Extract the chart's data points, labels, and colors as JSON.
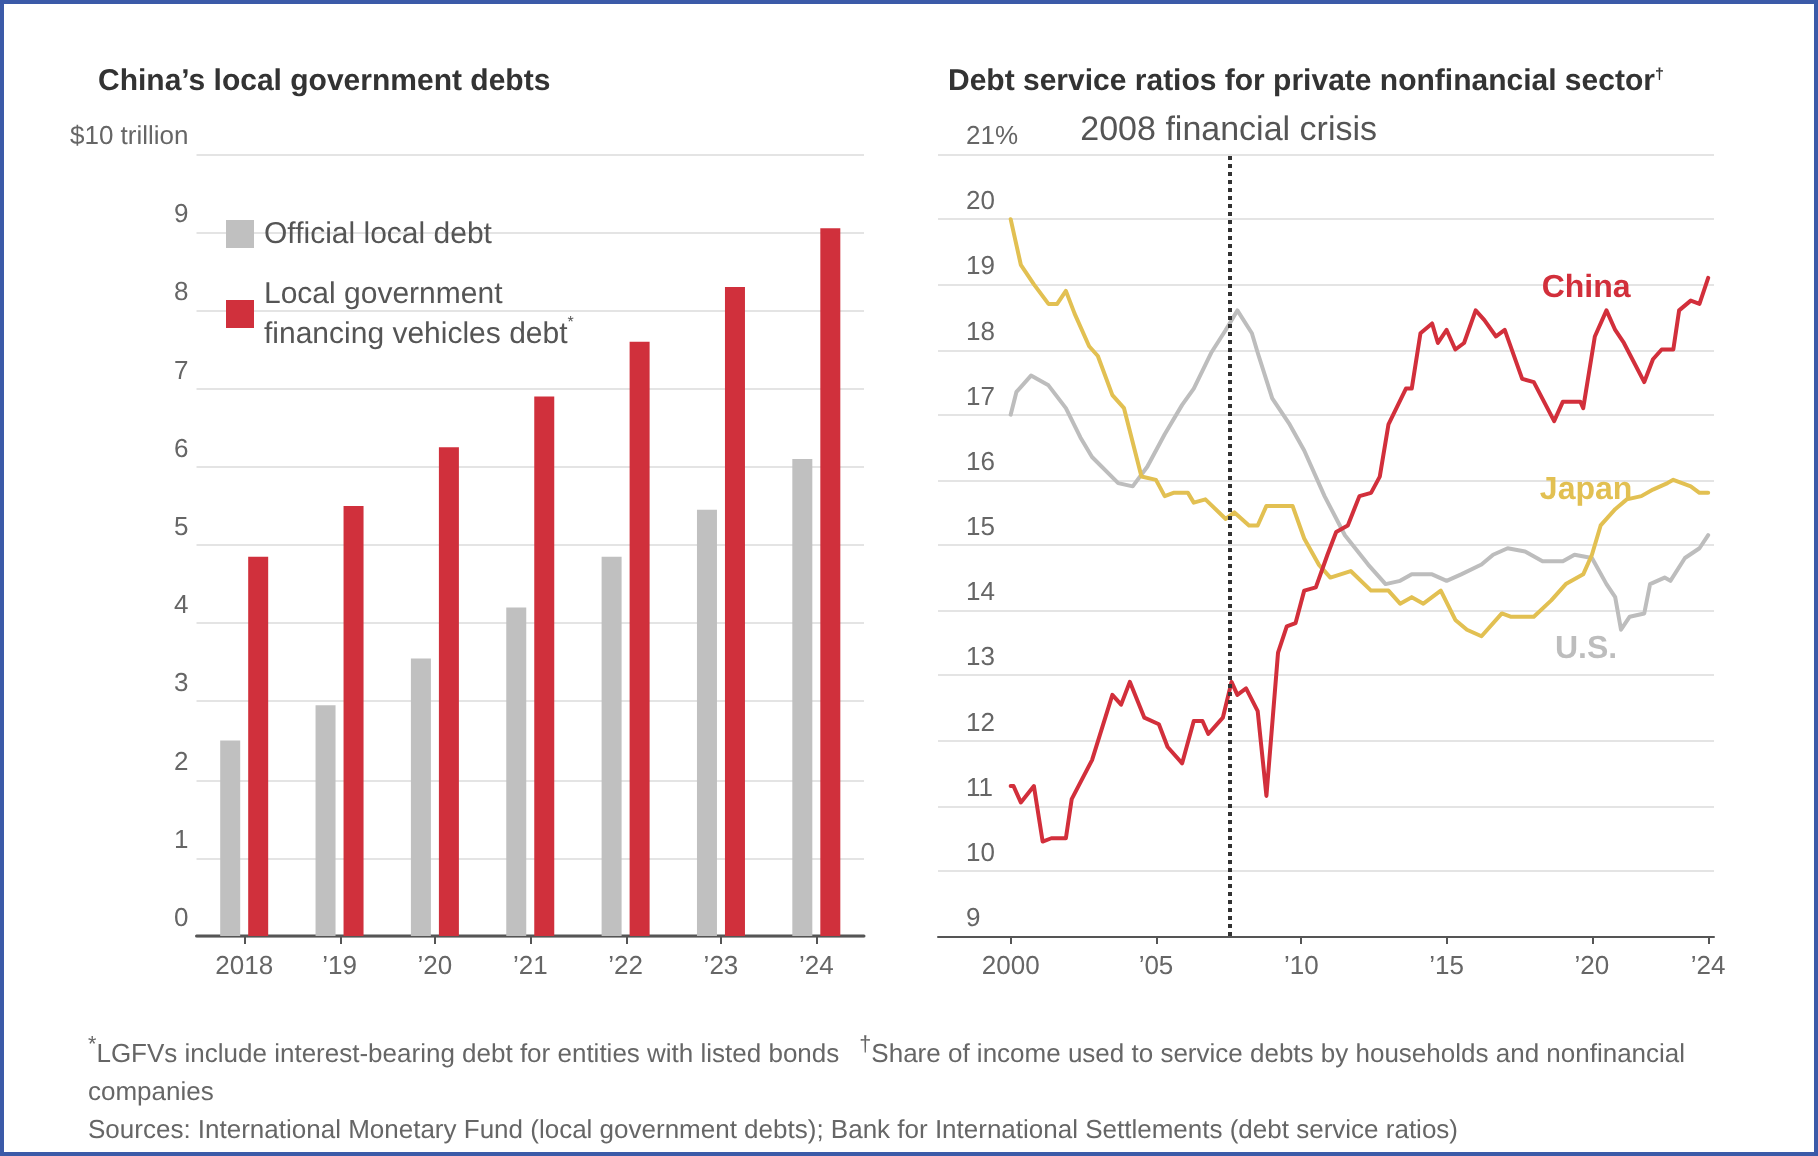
{
  "chart_data": [
    {
      "type": "bar",
      "title": "China’s local government debts",
      "categories": [
        "2018",
        "’19",
        "’20",
        "’21",
        "’22",
        "’23",
        "’24"
      ],
      "series": [
        {
          "name": "Official local debt",
          "color": "#c0c0c0",
          "values": [
            2.5,
            2.95,
            3.55,
            4.2,
            4.85,
            5.45,
            6.1
          ]
        },
        {
          "name": "Local government financing vehicles debt$^{*}$",
          "color": "#d0303c",
          "values": [
            4.85,
            5.5,
            6.25,
            6.9,
            7.6,
            8.3,
            9.05
          ]
        }
      ],
      "ylim": [
        0,
        10
      ],
      "yticks": [
        0,
        1,
        2,
        3,
        4,
        5,
        6,
        7,
        8,
        9,
        {
          "value": 10,
          "label": "$10 trillion"
        }
      ],
      "grid": "y",
      "legend": "top left",
      "annotations": [
        "$^{*}$LGFVs include interest-bearing debt for entities with listed bonds",
        "Sources: International Monetary Fund (local government debts); Bank for International Settlements (debt service ratios)"
      ]
    },
    {
      "type": "line",
      "title": "Debt service ratios for private nonfinancial sector$^{†}$",
      "xlim": [
        1997.5,
        2024.2
      ],
      "xticks": [
        2000,
        {
          "value": 2005,
          "label": "’05"
        },
        {
          "value": 2010,
          "label": "’10"
        },
        {
          "value": 2015,
          "label": "’15"
        },
        {
          "value": 2020,
          "label": "’20"
        },
        {
          "value": 2024,
          "label": "’24"
        }
      ],
      "ylim": [
        9,
        21
      ],
      "yticks": [
        9,
        10,
        11,
        12,
        13,
        14,
        15,
        16,
        17,
        18,
        19,
        20,
        {
          "value": 21,
          "label": "21%"
        }
      ],
      "grid": "y",
      "legend": false,
      "marker": "none",
      "line_style": "solid",
      "series": [
        {
          "name": "U.S.",
          "color": "#bdbdbd",
          "x": [
            2000,
            2000.2,
            2000.7,
            2001.3,
            2001.9,
            2002.4,
            2002.8,
            2003.7,
            2004.2,
            2004.7,
            2005.3,
            2005.9,
            2006.3,
            2006.9,
            2007.4,
            2007.8,
            2008.3,
            2008.5,
            2009,
            2009.6,
            2010.1,
            2010.8,
            2011.5,
            2012.3,
            2012.9,
            2013.4,
            2013.8,
            2014.5,
            2015,
            2015.5,
            2016.2,
            2016.6,
            2017.1,
            2017.7,
            2018.3,
            2019,
            2019.4,
            2020,
            2020.5,
            2020.8,
            2021,
            2021.3,
            2021.8,
            2022,
            2022.5,
            2022.7,
            2023.2,
            2023.7,
            2024
          ],
          "values": [
            17,
            17.35,
            17.6,
            17.45,
            17.1,
            16.65,
            16.35,
            15.95,
            15.9,
            16.2,
            16.7,
            17.15,
            17.4,
            17.95,
            18.3,
            18.6,
            18.25,
            17.95,
            17.25,
            16.85,
            16.45,
            15.75,
            15.15,
            14.7,
            14.4,
            14.45,
            14.55,
            14.55,
            14.45,
            14.55,
            14.7,
            14.85,
            14.95,
            14.9,
            14.75,
            14.75,
            14.85,
            14.8,
            14.4,
            14.2,
            13.7,
            13.9,
            13.95,
            14.4,
            14.5,
            14.45,
            14.8,
            14.95,
            15.15
          ]
        },
        {
          "name": "Japan",
          "color": "#e2c052",
          "x": [
            2000,
            2000.35,
            2000.8,
            2001.3,
            2001.6,
            2001.9,
            2002.2,
            2002.7,
            2003,
            2003.5,
            2003.9,
            2004.5,
            2005,
            2005.3,
            2005.6,
            2006.1,
            2006.3,
            2006.7,
            2007.4,
            2007.7,
            2008.2,
            2008.5,
            2008.8,
            2009.7,
            2010.1,
            2010.6,
            2011,
            2011.7,
            2012.4,
            2013,
            2013.4,
            2013.8,
            2014.2,
            2014.8,
            2015.3,
            2015.7,
            2016.2,
            2016.9,
            2017.2,
            2018,
            2018.6,
            2019.1,
            2019.7,
            2020,
            2020.3,
            2020.8,
            2021.2,
            2021.7,
            2022.1,
            2022.6,
            2022.8,
            2023.4,
            2023.7,
            2024
          ],
          "values": [
            20,
            19.3,
            19,
            18.7,
            18.7,
            18.9,
            18.55,
            18.05,
            17.9,
            17.3,
            17.1,
            16.05,
            16,
            15.75,
            15.8,
            15.8,
            15.65,
            15.7,
            15.4,
            15.5,
            15.3,
            15.3,
            15.6,
            15.6,
            15.1,
            14.7,
            14.5,
            14.6,
            14.3,
            14.3,
            14.1,
            14.2,
            14.1,
            14.3,
            13.85,
            13.7,
            13.6,
            13.95,
            13.9,
            13.9,
            14.15,
            14.4,
            14.55,
            14.85,
            15.3,
            15.55,
            15.7,
            15.75,
            15.85,
            15.95,
            16,
            15.9,
            15.8,
            15.8
          ]
        },
        {
          "name": "China",
          "color": "#d22f3b",
          "x": [
            2000,
            2000.1,
            2000.35,
            2000.8,
            2001.1,
            2001.4,
            2001.9,
            2002.1,
            2002.8,
            2003.5,
            2003.8,
            2004.1,
            2004.6,
            2005.1,
            2005.4,
            2005.9,
            2006.3,
            2006.6,
            2006.8,
            2007.3,
            2007.6,
            2007.8,
            2008.1,
            2008.5,
            2008.8,
            2009.2,
            2009.5,
            2009.8,
            2010.1,
            2010.5,
            2010.9,
            2011.2,
            2011.6,
            2012,
            2012.4,
            2012.7,
            2013,
            2013.6,
            2013.8,
            2014.1,
            2014.5,
            2014.7,
            2015,
            2015.3,
            2015.6,
            2016,
            2016.3,
            2016.7,
            2017,
            2017.6,
            2018,
            2018.7,
            2019,
            2019.6,
            2019.7,
            2020.1,
            2020.5,
            2020.8,
            2021.1,
            2021.8,
            2022.1,
            2022.4,
            2022.8,
            2023,
            2023.4,
            2023.7,
            2024
          ],
          "values": [
            11.3,
            11.3,
            11.05,
            11.3,
            10.45,
            10.5,
            10.5,
            11.1,
            11.7,
            12.7,
            12.55,
            12.9,
            12.35,
            12.25,
            11.9,
            11.65,
            12.3,
            12.3,
            12.1,
            12.35,
            12.9,
            12.7,
            12.8,
            12.45,
            11.15,
            13.35,
            13.75,
            13.8,
            14.3,
            14.35,
            14.85,
            15.2,
            15.3,
            15.75,
            15.8,
            16.05,
            16.85,
            17.4,
            17.4,
            18.25,
            18.4,
            18.1,
            18.3,
            18,
            18.1,
            18.6,
            18.45,
            18.2,
            18.3,
            17.55,
            17.5,
            16.9,
            17.2,
            17.2,
            17.1,
            18.2,
            18.6,
            18.3,
            18.1,
            17.5,
            17.85,
            18,
            18,
            18.6,
            18.75,
            18.7,
            19.1
          ]
        }
      ],
      "ref_lines": [
        {
          "axis": "x",
          "value": 2007.5,
          "label": "2008 financial crisis",
          "color": "#333333",
          "line_style": "dotted"
        }
      ],
      "annotations": [
        "$^{†}$Share of income used to service debts by households and nonfinancial companies"
      ]
    }
  ]
}
